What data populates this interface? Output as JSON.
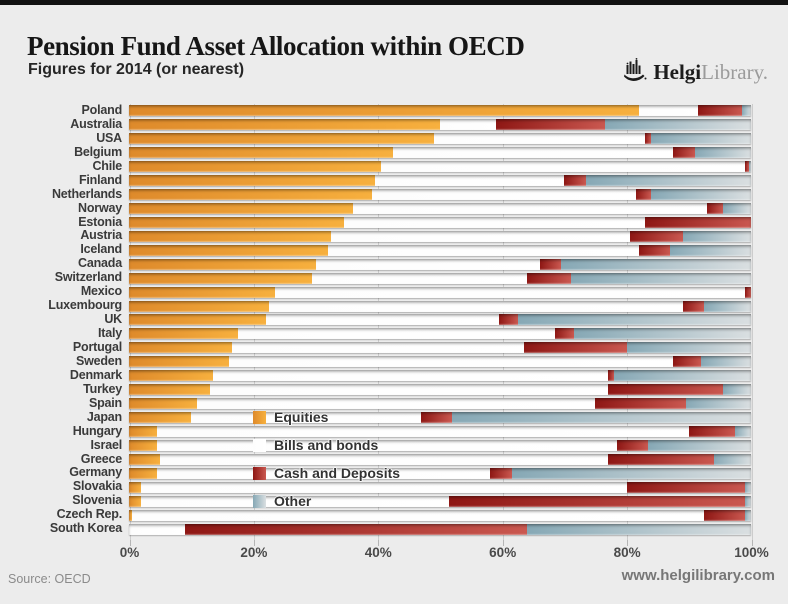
{
  "page": {
    "title": "Pension Fund Asset Allocation within OECD",
    "subtitle": "Figures for 2014 (or nearest)",
    "logo_name": "Helgi",
    "logo_suffix": "Library.",
    "source": "Source: OECD",
    "website": "www.helgilibrary.com"
  },
  "icons": {
    "logo": "helgi-ship-bars-icon"
  },
  "colors": {
    "background": "#ececec",
    "top_bar": "#121212",
    "gridline": "#cccccc",
    "equities_start": "#de8a2b",
    "equities_end": "#f7b03e",
    "bonds_start": "#fdfdfd",
    "bonds_end": "#ffffff",
    "cash_start": "#8e1714",
    "cash_end": "#ca5850",
    "other_start": "#86a8b5",
    "other_end": "#dadfe1"
  },
  "chart_data": {
    "type": "bar",
    "orientation": "horizontal",
    "stacked": true,
    "title": "Pension Fund Asset Allocation within OECD",
    "subtitle": "Figures for 2014 (or nearest)",
    "xlabel": "",
    "ylabel": "",
    "unit": "%",
    "xlim": [
      0,
      100
    ],
    "grid": true,
    "gridlines_at": [
      0,
      20,
      40,
      60,
      80,
      100
    ],
    "x_ticks": [
      "0%",
      "20%",
      "40%",
      "60%",
      "80%",
      "100%"
    ],
    "legend": [
      "Equities",
      "Bills and bonds",
      "Cash and Deposits",
      "Other"
    ],
    "legend_position": "inside-lower-left",
    "categories": [
      "Poland",
      "Australia",
      "USA",
      "Belgium",
      "Chile",
      "Finland",
      "Netherlands",
      "Norway",
      "Estonia",
      "Austria",
      "Iceland",
      "Canada",
      "Switzerland",
      "Mexico",
      "Luxembourg",
      "UK",
      "Italy",
      "Portugal",
      "Sweden",
      "Denmark",
      "Turkey",
      "Spain",
      "Japan",
      "Hungary",
      "Israel",
      "Greece",
      "Germany",
      "Slovakia",
      "Slovenia",
      "Czech Rep.",
      "South Korea"
    ],
    "series": [
      {
        "name": "Equities",
        "color_start": "#de8a2b",
        "color_end": "#f7b03e",
        "values": [
          82,
          50,
          49,
          42.5,
          40.5,
          39.5,
          39,
          36,
          34.5,
          32.5,
          32,
          30,
          29.5,
          23.5,
          22.5,
          22,
          17.5,
          16.5,
          16,
          13.5,
          13,
          11,
          10,
          4.5,
          4.5,
          5,
          4.5,
          2,
          2,
          0.5,
          0
        ]
      },
      {
        "name": "Bills and bonds",
        "color_start": "#fdfdfd",
        "color_end": "#ffffff",
        "values": [
          9.5,
          9,
          34,
          45,
          58.5,
          30.5,
          42.5,
          57,
          48.5,
          48,
          50,
          36,
          34.5,
          75.5,
          66.5,
          37.5,
          51,
          47,
          71.5,
          63.5,
          64,
          64,
          37,
          85.5,
          74,
          72,
          53.5,
          78,
          49.5,
          92,
          9
        ]
      },
      {
        "name": "Cash and Deposits",
        "color_start": "#8e1714",
        "color_end": "#ca5850",
        "values": [
          7,
          17.5,
          1,
          3.5,
          0.7,
          3.5,
          2.5,
          2.5,
          17,
          8.5,
          5,
          3.5,
          7,
          1,
          3.5,
          3,
          3,
          16.5,
          4.5,
          1,
          18.5,
          14.5,
          5,
          7.5,
          5,
          17,
          3.5,
          19,
          47.5,
          6.5,
          55
        ]
      },
      {
        "name": "Other",
        "color_start": "#86a8b5",
        "color_end": "#dadfe1",
        "values": [
          1.5,
          23.5,
          16,
          9,
          0.3,
          26.5,
          16,
          4.5,
          0,
          11,
          13,
          30.5,
          29,
          0,
          7.5,
          37.5,
          28.5,
          20,
          8,
          22,
          4.5,
          10.5,
          48,
          2.5,
          16.5,
          6,
          38.5,
          1,
          1,
          1,
          36
        ]
      }
    ]
  }
}
